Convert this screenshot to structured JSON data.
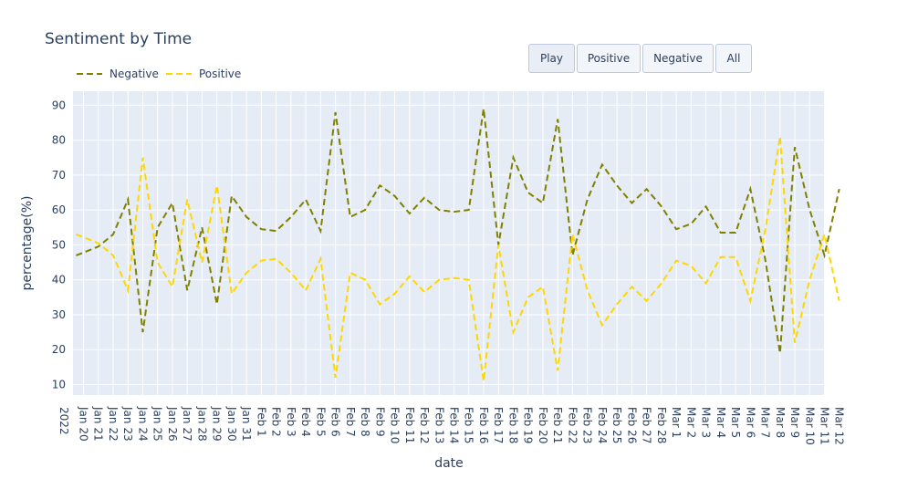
{
  "controls": {
    "buttons": [
      {
        "label": "Play"
      },
      {
        "label": "Positive"
      },
      {
        "label": "Negative"
      },
      {
        "label": "All"
      }
    ]
  },
  "colors": {
    "negative": "#808000",
    "positive": "#ffd700",
    "plot_bg": "#e5ecf6",
    "grid": "#ffffff",
    "text": "#2a3f5f"
  },
  "chart_data": {
    "type": "line",
    "title": "Sentiment by Time",
    "xlabel": "date",
    "ylabel": "percentage(%)",
    "ylim": [
      7,
      94
    ],
    "yticks": [
      10,
      20,
      30,
      40,
      50,
      60,
      70,
      80,
      90
    ],
    "grid": true,
    "legend": "top-left, horizontal",
    "year_label": "2022",
    "x": [
      "Jan 20",
      "Jan 21",
      "Jan 22",
      "Jan 23",
      "Jan 24",
      "Jan 25",
      "Jan 26",
      "Jan 27",
      "Jan 28",
      "Jan 29",
      "Jan 30",
      "Jan 31",
      "Feb 1",
      "Feb 2",
      "Feb 3",
      "Feb 4",
      "Feb 5",
      "Feb 6",
      "Feb 7",
      "Feb 8",
      "Feb 9",
      "Feb 10",
      "Feb 11",
      "Feb 12",
      "Feb 13",
      "Feb 14",
      "Feb 15",
      "Feb 16",
      "Feb 17",
      "Feb 18",
      "Feb 19",
      "Feb 20",
      "Feb 21",
      "Feb 22",
      "Feb 23",
      "Feb 24",
      "Feb 25",
      "Feb 26",
      "Feb 27",
      "Feb 28",
      "Mar 1",
      "Mar 2",
      "Mar 3",
      "Mar 4",
      "Mar 5",
      "Mar 6",
      "Mar 7",
      "Mar 8",
      "Mar 9",
      "Mar 10",
      "Mar 11",
      "Mar 12"
    ],
    "series": [
      {
        "name": "Negative",
        "dash": "dash",
        "points": [
          [
            "Jan 19.5",
            47
          ],
          [
            "Jan 20",
            47.8
          ],
          [
            "Jan 21",
            49.5
          ],
          [
            "Jan 22",
            53
          ],
          [
            "Jan 23",
            63
          ],
          [
            "Jan 24",
            25
          ],
          [
            "Jan 25",
            55
          ],
          [
            "Jan 26",
            62
          ],
          [
            "Jan 27",
            37
          ],
          [
            "Jan 28",
            55
          ],
          [
            "Jan 29",
            33
          ],
          [
            "Jan 30",
            64
          ],
          [
            "Jan 31",
            58
          ],
          [
            "Feb 1",
            54.5
          ],
          [
            "Feb 2",
            54
          ],
          [
            "Feb 3",
            58
          ],
          [
            "Feb 4",
            63
          ],
          [
            "Feb 5",
            54
          ],
          [
            "Feb 6",
            88
          ],
          [
            "Feb 7",
            58
          ],
          [
            "Feb 8",
            60
          ],
          [
            "Feb 9",
            67
          ],
          [
            "Feb 10",
            64
          ],
          [
            "Feb 11",
            59
          ],
          [
            "Feb 12",
            63.5
          ],
          [
            "Feb 13",
            60
          ],
          [
            "Feb 14",
            59.5
          ],
          [
            "Feb 15",
            60
          ],
          [
            "Feb 16",
            89
          ],
          [
            "Feb 17",
            50
          ],
          [
            "Feb 18",
            75
          ],
          [
            "Feb 19",
            65
          ],
          [
            "Feb 20",
            62
          ],
          [
            "Feb 21",
            86
          ],
          [
            "Feb 22",
            47
          ],
          [
            "Feb 23",
            63
          ],
          [
            "Feb 24",
            73
          ],
          [
            "Feb 25",
            67
          ],
          [
            "Feb 26",
            62
          ],
          [
            "Feb 27",
            66
          ],
          [
            "Feb 28",
            61
          ],
          [
            "Mar 1",
            54.5
          ],
          [
            "Mar 2",
            56
          ],
          [
            "Mar 3",
            61
          ],
          [
            "Mar 4",
            53.5
          ],
          [
            "Mar 5",
            53.5
          ],
          [
            "Mar 6",
            66
          ],
          [
            "Mar 7",
            46
          ],
          [
            "Mar 8",
            19
          ],
          [
            "Mar 9",
            78
          ],
          [
            "Mar 10",
            60
          ],
          [
            "Mar 11",
            47
          ],
          [
            "Mar 12",
            66
          ]
        ]
      },
      {
        "name": "Positive",
        "dash": "dash",
        "points": [
          [
            "Jan 19.5",
            53
          ],
          [
            "Jan 20",
            52.2
          ],
          [
            "Jan 21",
            50.5
          ],
          [
            "Jan 22",
            47
          ],
          [
            "Jan 23",
            37
          ],
          [
            "Jan 24",
            75
          ],
          [
            "Jan 25",
            45
          ],
          [
            "Jan 26",
            38
          ],
          [
            "Jan 27",
            63
          ],
          [
            "Jan 28",
            45
          ],
          [
            "Jan 29",
            67
          ],
          [
            "Jan 30",
            36
          ],
          [
            "Jan 31",
            42
          ],
          [
            "Feb 1",
            45.5
          ],
          [
            "Feb 2",
            46
          ],
          [
            "Feb 3",
            42
          ],
          [
            "Feb 4",
            37
          ],
          [
            "Feb 5",
            46
          ],
          [
            "Feb 6",
            12
          ],
          [
            "Feb 7",
            42
          ],
          [
            "Feb 8",
            40
          ],
          [
            "Feb 9",
            33
          ],
          [
            "Feb 10",
            36
          ],
          [
            "Feb 11",
            41
          ],
          [
            "Feb 12",
            36.5
          ],
          [
            "Feb 13",
            40
          ],
          [
            "Feb 14",
            40.5
          ],
          [
            "Feb 15",
            40
          ],
          [
            "Feb 16",
            11
          ],
          [
            "Feb 17",
            50
          ],
          [
            "Feb 18",
            25
          ],
          [
            "Feb 19",
            35
          ],
          [
            "Feb 20",
            38
          ],
          [
            "Feb 21",
            14
          ],
          [
            "Feb 22",
            53
          ],
          [
            "Feb 23",
            37
          ],
          [
            "Feb 24",
            27
          ],
          [
            "Feb 25",
            33
          ],
          [
            "Feb 26",
            38
          ],
          [
            "Feb 27",
            34
          ],
          [
            "Feb 28",
            39
          ],
          [
            "Mar 1",
            45.5
          ],
          [
            "Mar 2",
            44
          ],
          [
            "Mar 3",
            39
          ],
          [
            "Mar 4",
            46.5
          ],
          [
            "Mar 5",
            46.5
          ],
          [
            "Mar 6",
            34
          ],
          [
            "Mar 7",
            54
          ],
          [
            "Mar 8",
            81
          ],
          [
            "Mar 9",
            22
          ],
          [
            "Mar 10",
            40
          ],
          [
            "Mar 11",
            53
          ],
          [
            "Mar 12",
            34
          ]
        ]
      }
    ]
  }
}
